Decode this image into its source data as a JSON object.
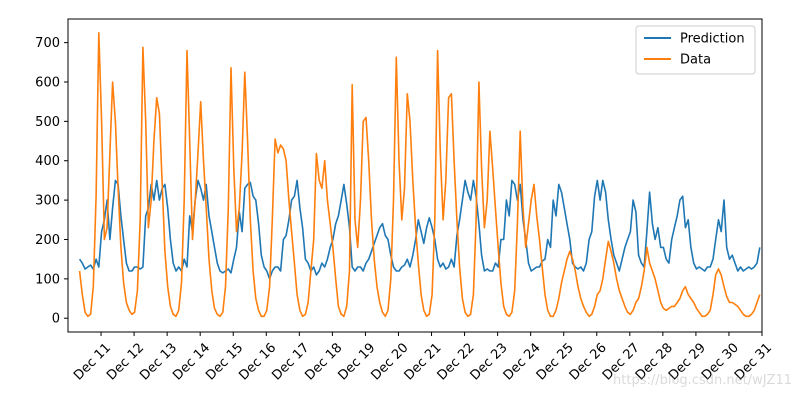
{
  "chart_data": {
    "type": "line",
    "title": "",
    "xlabel": "",
    "ylabel": "",
    "ylim": [
      -35,
      760
    ],
    "yticks": [
      0,
      100,
      200,
      300,
      400,
      500,
      600,
      700
    ],
    "xticks": [
      "Dec 11",
      "Dec 12",
      "Dec 13",
      "Dec 14",
      "Dec 15",
      "Dec 16",
      "Dec 17",
      "Dec 18",
      "Dec 19",
      "Dec 20",
      "Dec 21",
      "Dec 22",
      "Dec 23",
      "Dec 24",
      "Dec 25",
      "Dec 26",
      "Dec 27",
      "Dec 28",
      "Dec 29",
      "Dec 30",
      "Dec 31"
    ],
    "legend": {
      "position": "top-right",
      "entries": [
        "Prediction",
        "Data"
      ]
    },
    "colors": {
      "Prediction": "#1f77b4",
      "Data": "#ff7f0e"
    },
    "peaks": {
      "Data": [
        725,
        688,
        680,
        636,
        455,
        418,
        593,
        663,
        680,
        600,
        475,
        340,
        195,
        180,
        125,
        85,
        175,
        270,
        190,
        195,
        225
      ],
      "Prediction": [
        345,
        350,
        350,
        345,
        345,
        240,
        255,
        350,
        350,
        340,
        350,
        320,
        310,
        300,
        340,
        300,
        300,
        320,
        250,
        355,
        260
      ]
    },
    "series": [
      {
        "name": "Prediction",
        "x_start_days": 10.35,
        "step_hours": 2,
        "values": [
          150,
          140,
          125,
          130,
          135,
          125,
          150,
          130,
          220,
          250,
          300,
          200,
          280,
          350,
          340,
          260,
          200,
          140,
          120,
          120,
          130,
          130,
          125,
          130,
          260,
          280,
          340,
          300,
          350,
          300,
          330,
          340,
          280,
          200,
          140,
          120,
          130,
          120,
          150,
          130,
          260,
          220,
          300,
          350,
          330,
          300,
          340,
          260,
          220,
          180,
          140,
          120,
          115,
          120,
          125,
          115,
          150,
          180,
          270,
          220,
          330,
          340,
          345,
          310,
          300,
          240,
          160,
          130,
          120,
          100,
          120,
          130,
          130,
          120,
          200,
          210,
          250,
          300,
          310,
          350,
          280,
          230,
          150,
          140,
          120,
          130,
          110,
          120,
          140,
          130,
          150,
          180,
          200,
          240,
          260,
          300,
          340,
          290,
          230,
          130,
          120,
          130,
          130,
          120,
          140,
          150,
          170,
          190,
          210,
          230,
          240,
          210,
          200,
          160,
          130,
          120,
          120,
          130,
          135,
          150,
          130,
          160,
          200,
          250,
          220,
          190,
          230,
          255,
          230,
          200,
          150,
          130,
          140,
          125,
          130,
          150,
          130,
          210,
          250,
          300,
          350,
          320,
          300,
          350,
          310,
          240,
          160,
          120,
          125,
          120,
          120,
          140,
          130,
          200,
          200,
          300,
          260,
          350,
          340,
          300,
          340,
          250,
          200,
          140,
          120,
          125,
          130,
          130,
          145,
          150,
          200,
          180,
          300,
          260,
          340,
          320,
          280,
          240,
          200,
          140,
          130,
          125,
          130,
          120,
          140,
          200,
          220,
          310,
          350,
          300,
          350,
          320,
          250,
          200,
          160,
          140,
          120,
          150,
          180,
          200,
          220,
          300,
          270,
          160,
          140,
          130,
          220,
          320,
          240,
          200,
          230,
          180,
          180,
          150,
          140,
          200,
          230,
          260,
          300,
          310,
          230,
          250,
          180,
          140,
          125,
          130,
          125,
          120,
          130,
          130,
          150,
          200,
          250,
          220,
          300,
          180,
          150,
          160,
          140,
          120,
          130,
          120,
          125,
          130,
          125,
          130,
          140,
          180,
          200,
          230,
          150,
          190,
          220,
          160,
          130,
          125,
          120,
          120,
          130,
          125,
          120,
          130,
          140,
          190,
          150,
          120,
          300,
          160,
          140,
          130,
          120,
          125,
          125,
          120,
          125,
          150,
          120,
          210,
          125,
          200,
          250,
          340,
          200,
          240,
          160,
          140,
          130,
          120,
          125,
          120,
          130,
          125,
          130,
          150,
          130,
          125,
          300,
          180,
          130,
          120,
          125,
          125,
          120,
          125,
          130,
          140,
          120,
          210,
          180,
          160,
          140,
          160,
          170,
          190,
          300,
          130,
          120,
          130,
          125,
          120,
          140,
          160,
          250,
          180,
          320,
          310,
          260,
          200,
          150,
          130,
          120,
          130,
          130,
          125,
          140,
          200,
          170,
          250,
          200,
          170,
          160,
          120,
          130,
          120,
          125,
          120,
          130,
          140,
          150,
          170,
          125,
          180,
          180,
          120,
          150,
          130,
          120,
          130,
          125,
          140,
          125,
          130,
          150,
          170,
          355,
          180,
          200,
          160,
          130,
          120,
          130,
          125,
          140,
          160,
          270,
          220,
          300
        ]
      },
      {
        "name": "Data",
        "x_start_days": 10.35,
        "step_hours": 2,
        "values": [
          120,
          60,
          15,
          5,
          10,
          80,
          310,
          725,
          500,
          200,
          230,
          420,
          600,
          500,
          330,
          180,
          90,
          40,
          20,
          10,
          15,
          70,
          250,
          688,
          500,
          230,
          300,
          450,
          560,
          520,
          340,
          170,
          80,
          30,
          10,
          5,
          20,
          90,
          300,
          680,
          450,
          200,
          300,
          420,
          550,
          400,
          280,
          150,
          70,
          25,
          10,
          5,
          15,
          80,
          280,
          636,
          380,
          220,
          280,
          420,
          625,
          450,
          250,
          120,
          50,
          20,
          5,
          5,
          20,
          80,
          250,
          455,
          420,
          440,
          430,
          400,
          300,
          220,
          140,
          60,
          20,
          5,
          10,
          40,
          120,
          200,
          418,
          350,
          330,
          400,
          300,
          240,
          180,
          100,
          30,
          10,
          5,
          30,
          120,
          593,
          250,
          180,
          300,
          500,
          510,
          400,
          250,
          150,
          80,
          40,
          15,
          5,
          20,
          100,
          300,
          663,
          400,
          250,
          330,
          570,
          500,
          350,
          230,
          140,
          60,
          20,
          5,
          10,
          60,
          250,
          680,
          420,
          250,
          350,
          560,
          570,
          400,
          250,
          130,
          50,
          15,
          5,
          10,
          60,
          250,
          600,
          380,
          230,
          300,
          475,
          380,
          280,
          180,
          90,
          30,
          10,
          5,
          15,
          70,
          240,
          475,
          280,
          180,
          240,
          300,
          340,
          260,
          200,
          130,
          60,
          20,
          5,
          5,
          20,
          50,
          90,
          120,
          150,
          170,
          150,
          120,
          80,
          50,
          30,
          15,
          5,
          10,
          30,
          60,
          70,
          100,
          150,
          195,
          170,
          140,
          100,
          70,
          50,
          30,
          15,
          10,
          20,
          40,
          50,
          80,
          120,
          180,
          140,
          120,
          100,
          70,
          40,
          25,
          20,
          25,
          30,
          30,
          40,
          50,
          70,
          80,
          60,
          50,
          40,
          25,
          15,
          5,
          5,
          10,
          20,
          60,
          110,
          125,
          110,
          80,
          55,
          40,
          40,
          35,
          30,
          20,
          10,
          5,
          5,
          10,
          20,
          40,
          60,
          80,
          85,
          80,
          40,
          25,
          20,
          10,
          5,
          20,
          50,
          70,
          90,
          175,
          80,
          140,
          100,
          170,
          200,
          150,
          100,
          70,
          30,
          10,
          5,
          10,
          40,
          100,
          200,
          240,
          200,
          270,
          160,
          220,
          180,
          140,
          100,
          50,
          20,
          5,
          10,
          40,
          70,
          110,
          190,
          150,
          130,
          110,
          80,
          60,
          40,
          20,
          10,
          5,
          20,
          60,
          110,
          150,
          130,
          180,
          195,
          120,
          100,
          80,
          60,
          40,
          20,
          10,
          5,
          10,
          30,
          60,
          120,
          200,
          225
        ]
      }
    ]
  },
  "watermark": "https://blog.csdn.net/wJZ11"
}
